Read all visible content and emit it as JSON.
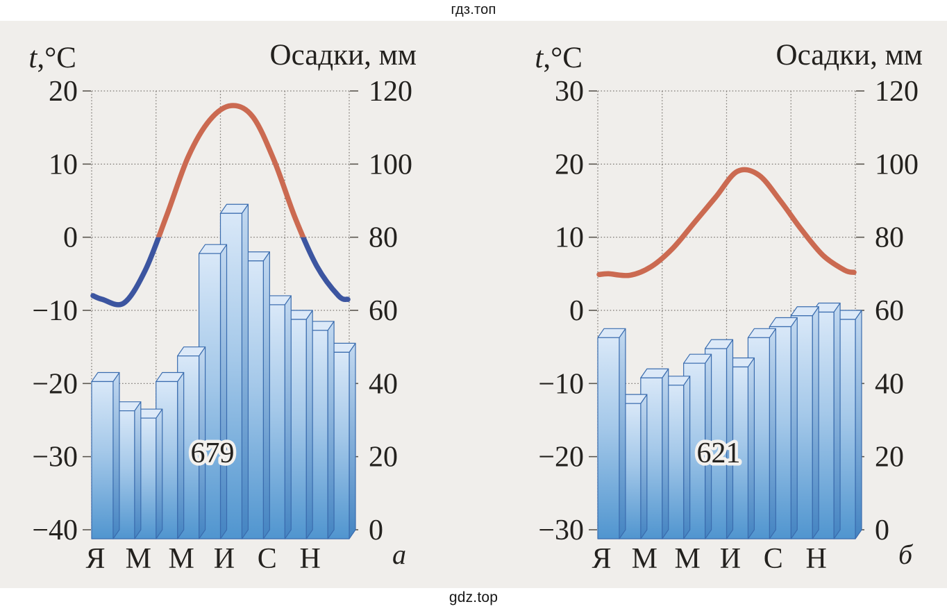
{
  "page": {
    "watermark_top": "гдз.топ",
    "watermark_bottom": "gdz.top"
  },
  "colors": {
    "scan_background": "#f0eeeb",
    "page_background": "#ffffff",
    "text": "#23211e",
    "grid": "#7d7974",
    "curve_warm": "#cb6a51",
    "curve_cold": "#3c55a0",
    "bar_outline": "#3a6cae",
    "bar_front_top": "#d9e8f8",
    "bar_front_mid": "#a4c8e9",
    "bar_front_bottom": "#5095cf",
    "bar_side_top": "#c3d9f0",
    "bar_side_bottom": "#4484c2",
    "bar_top_face": "#dce9f8"
  },
  "chart_data": [
    {
      "type": "bar",
      "subtype": "climograph: monthly precipitation bars with mean monthly temperature line overlay",
      "corner_label": "а",
      "temp_axis": {
        "title": "t,°C",
        "ticks": [
          20,
          10,
          0,
          -10,
          -20,
          -30,
          -40
        ],
        "range": [
          -40,
          20
        ]
      },
      "precip_axis": {
        "title": "Осадки, мм",
        "ticks": [
          120,
          100,
          80,
          60,
          40,
          20,
          0
        ],
        "range": [
          0,
          120
        ]
      },
      "month_axis_labels": [
        "Я",
        "М",
        "М",
        "И",
        "С",
        "Н"
      ],
      "annual_precip_label": "679",
      "precip_mm": [
        43,
        35,
        33,
        43,
        50,
        78,
        89,
        76,
        64,
        60,
        57,
        51
      ],
      "temp_c": [
        -8.5,
        -9,
        -4.5,
        3,
        11,
        16,
        18,
        16.5,
        10.5,
        2.5,
        -4,
        -8
      ],
      "temp_curve_edges": [
        -8,
        -8.5
      ],
      "grid": true,
      "legend": null
    },
    {
      "type": "bar",
      "subtype": "climograph: monthly precipitation bars with mean monthly temperature line overlay",
      "corner_label": "б",
      "temp_axis": {
        "title": "t,°C",
        "ticks": [
          30,
          20,
          10,
          0,
          -10,
          -20,
          -30
        ],
        "range": [
          -30,
          30
        ]
      },
      "precip_axis": {
        "title": "Осадки, мм",
        "ticks": [
          120,
          100,
          80,
          60,
          40,
          20,
          0
        ],
        "range": [
          0,
          120
        ]
      },
      "month_axis_labels": [
        "Я",
        "М",
        "М",
        "И",
        "С",
        "Н"
      ],
      "annual_precip_label": "621",
      "precip_mm": [
        55,
        37,
        44,
        42,
        48,
        52,
        47,
        55,
        58,
        61,
        62,
        60
      ],
      "temp_c": [
        5,
        4.8,
        6,
        8.5,
        12,
        15.5,
        19,
        18.5,
        15,
        11,
        7.5,
        5.5
      ],
      "temp_curve_edges": [
        4.9,
        5.2
      ],
      "grid": true,
      "legend": null
    }
  ]
}
